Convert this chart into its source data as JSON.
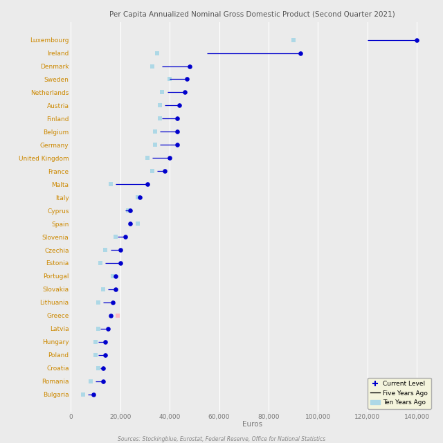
{
  "title": "Per Capita Annualized Nominal Gross Domestic Product (Second Quarter 2021)",
  "xlabel": "Euros",
  "source": "Sources: Stockingblue, Eurostat, Federal Reserve, Office for National Statistics",
  "countries": [
    "Luxembourg",
    "Ireland",
    "Denmark",
    "Sweden",
    "Netherlands",
    "Austria",
    "Finland",
    "Belgium",
    "Germany",
    "United Kingdom",
    "France",
    "Malta",
    "Italy",
    "Cyprus",
    "Spain",
    "Slovenia",
    "Czechia",
    "Estonia",
    "Portugal",
    "Slovakia",
    "Lithuania",
    "Greece",
    "Latvia",
    "Hungary",
    "Poland",
    "Croatia",
    "Romania",
    "Bulgaria"
  ],
  "current": [
    140000,
    93000,
    48000,
    47000,
    46000,
    44000,
    43000,
    43000,
    43000,
    40000,
    38000,
    31000,
    28000,
    24000,
    24000,
    22000,
    20000,
    20000,
    18000,
    18000,
    17000,
    16000,
    15000,
    14000,
    14000,
    13000,
    13000,
    9000
  ],
  "five_years_ago": [
    120000,
    55000,
    37000,
    40000,
    39000,
    38000,
    37000,
    36000,
    36000,
    33000,
    35000,
    18000,
    27000,
    22000,
    24000,
    19000,
    16000,
    14000,
    18000,
    15000,
    13000,
    16000,
    12000,
    11000,
    11000,
    12000,
    10000,
    7000
  ],
  "ten_years_ago": [
    90000,
    35000,
    33000,
    40000,
    37000,
    36000,
    36000,
    34000,
    34000,
    31000,
    33000,
    16000,
    27000,
    23000,
    27000,
    18000,
    14000,
    12000,
    17000,
    13000,
    11000,
    19000,
    11000,
    10000,
    10000,
    11000,
    8000,
    5000
  ],
  "xlim": [
    0,
    147000
  ],
  "xticks": [
    0,
    20000,
    40000,
    60000,
    80000,
    100000,
    120000,
    140000
  ],
  "xtick_labels": [
    "0",
    "20,000",
    "40,000",
    "60,000",
    "80,000",
    "100,000",
    "120,000",
    "140,000"
  ],
  "color_current": "#0000CC",
  "color_ten": "#ADD8E6",
  "color_ten_greece": "#FFB6C1",
  "bg_color": "#EBEBEB",
  "grid_color": "#FFFFFF",
  "title_color": "#555555",
  "label_color": "#CC8800",
  "tick_label_color": "#777777"
}
